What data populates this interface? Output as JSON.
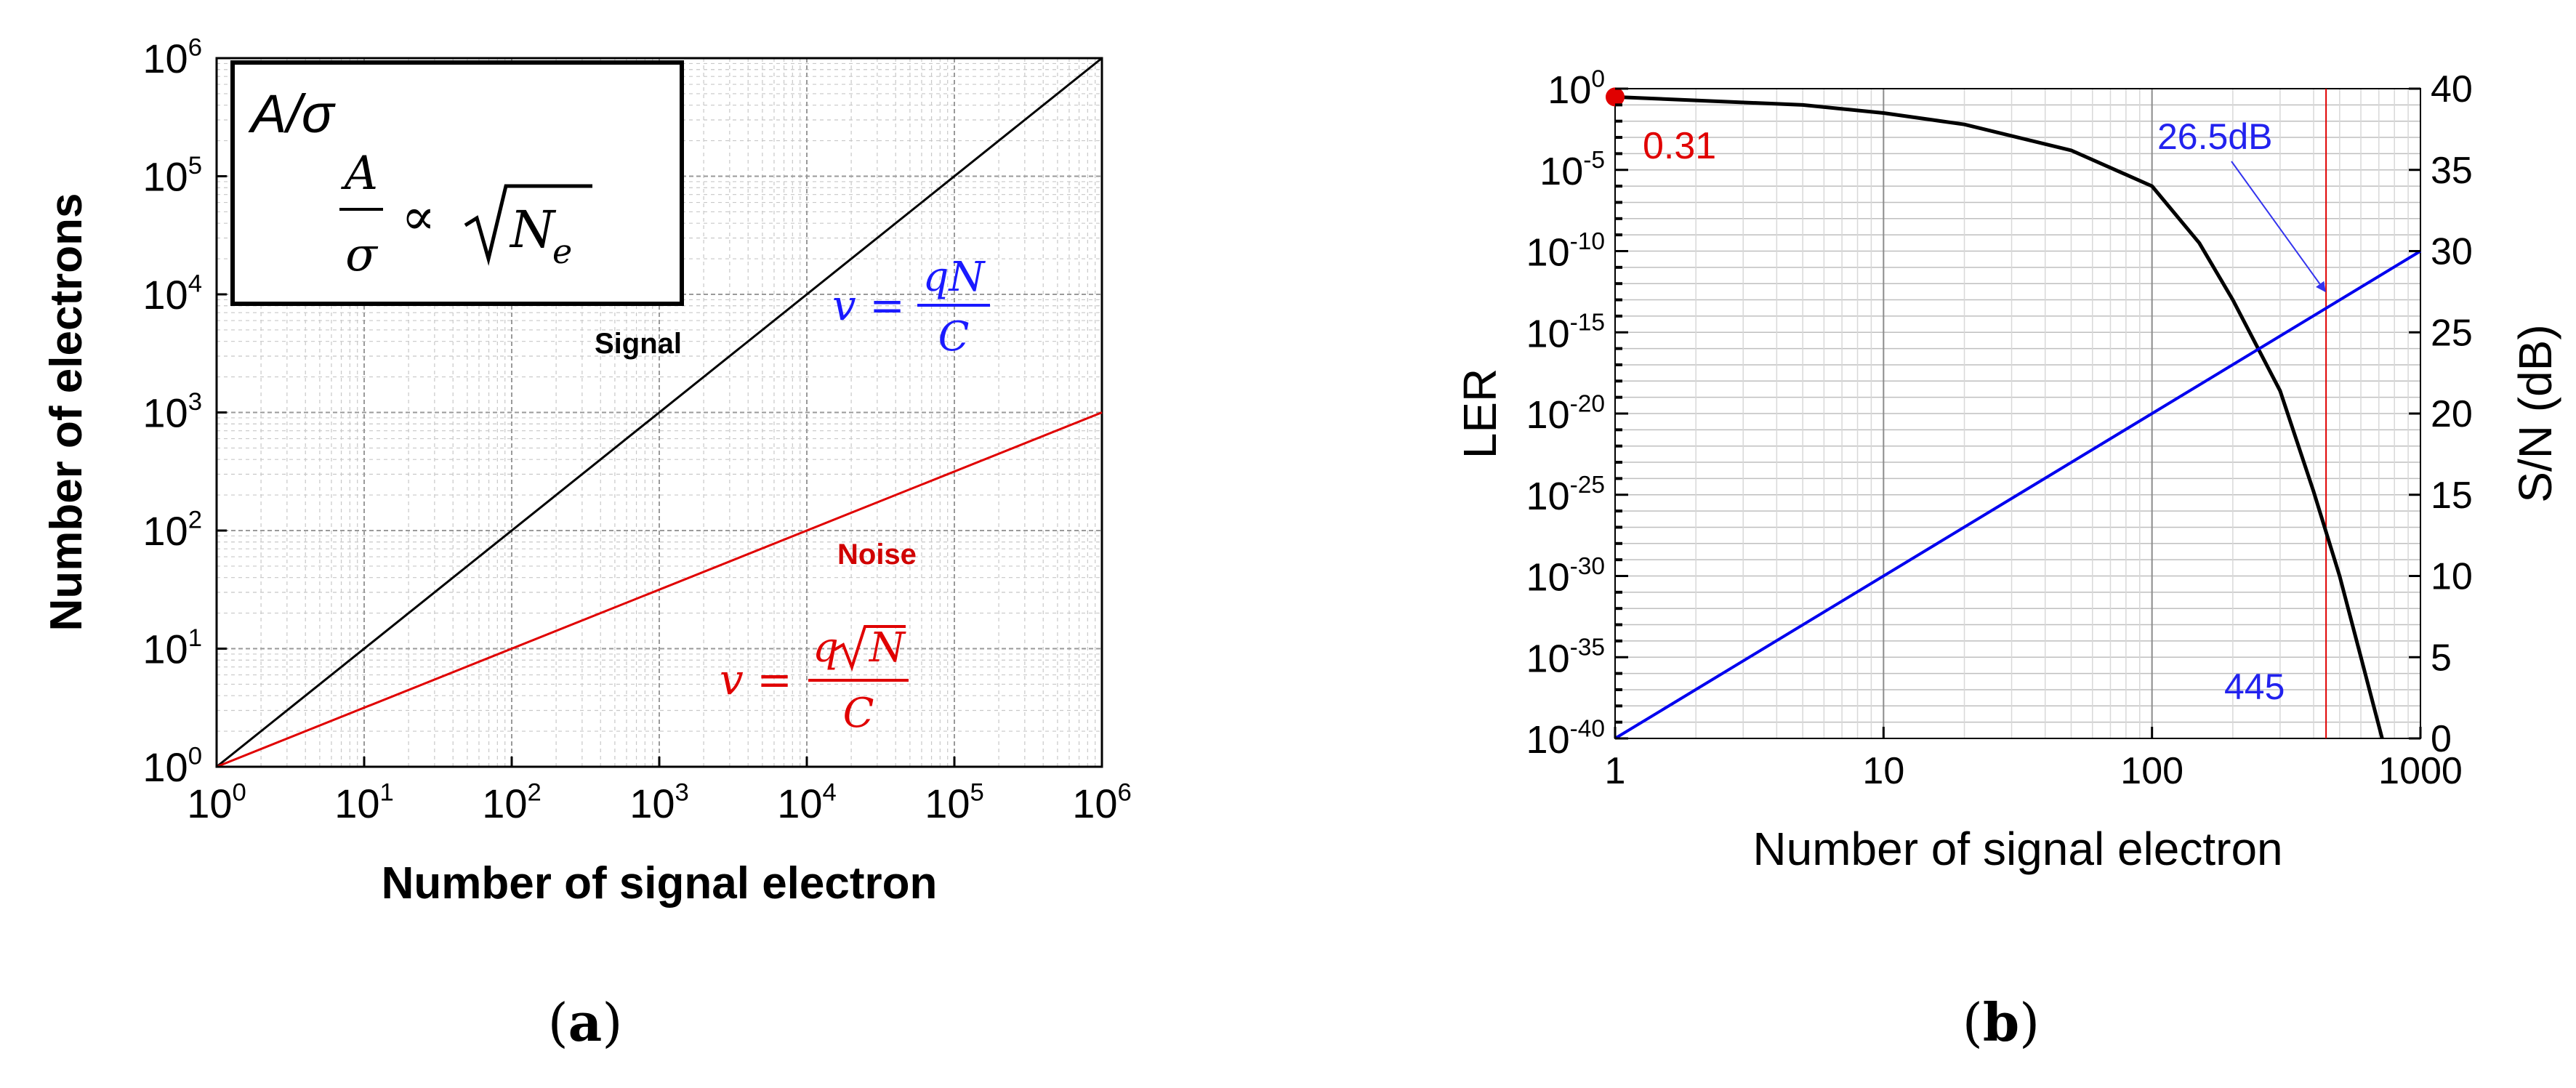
{
  "captions": {
    "a": {
      "open": "(",
      "letter": "a",
      "close": ")"
    },
    "b": {
      "open": "(",
      "letter": "b",
      "close": ")"
    }
  },
  "chart_data": [
    {
      "panel": "a",
      "type": "line",
      "title": "",
      "xlabel": "Number of signal electron",
      "ylabel": "Number of electrons",
      "xscale": "log",
      "yscale": "log",
      "xlim": [
        1,
        1000000
      ],
      "ylim": [
        1,
        1000000
      ],
      "grid": true,
      "x_ticks": [
        1,
        10,
        100,
        1000,
        10000,
        100000,
        1000000
      ],
      "y_ticks": [
        1,
        10,
        100,
        1000,
        10000,
        100000,
        1000000
      ],
      "tick_label_base": "10",
      "tick_label_exponents": [
        "0",
        "1",
        "2",
        "3",
        "4",
        "5",
        "6"
      ],
      "series": [
        {
          "name": "Signal",
          "color": "#000000",
          "x": [
            1,
            1000000
          ],
          "y": [
            1,
            1000000
          ],
          "formula": {
            "lhs": "v =",
            "num": "qN",
            "den": "C",
            "color": "#1a1aff"
          }
        },
        {
          "name": "Noise",
          "color": "#e00000",
          "x": [
            1,
            1000000
          ],
          "y": [
            1,
            1000
          ],
          "formula": {
            "lhs": "v =",
            "num_q": "q",
            "num_root": "N",
            "den": "C",
            "color": "#e00000"
          }
        }
      ],
      "legend_box": {
        "line1": "A/σ",
        "frac_num": "A",
        "frac_den": "σ",
        "prop": "∝",
        "root_var": "N",
        "root_sub": "e"
      }
    },
    {
      "panel": "b",
      "type": "line",
      "title": "",
      "xlabel": "Number of signal electron",
      "ylabel": "LER",
      "y2label": "S/N (dB)",
      "xscale": "log",
      "yscale": "log",
      "xlim": [
        1,
        1000
      ],
      "ylim": [
        1e-40,
        1
      ],
      "y2lim": [
        0,
        40
      ],
      "grid": true,
      "x_ticks": [
        1,
        10,
        100,
        1000
      ],
      "x_tick_labels": [
        "1",
        "10",
        "100",
        "1000"
      ],
      "y_ticks_exp": [
        0,
        -5,
        -10,
        -15,
        -20,
        -25,
        -30,
        -35,
        -40
      ],
      "y_tick_base": "10",
      "y_tick_exponents": [
        "0",
        "-5",
        "-10",
        "-15",
        "-20",
        "-25",
        "-30",
        "-35",
        "-40"
      ],
      "y2_ticks": [
        0,
        5,
        10,
        15,
        20,
        25,
        30,
        35,
        40
      ],
      "y2_tick_labels": [
        "0",
        "5",
        "10",
        "15",
        "20",
        "25",
        "30",
        "35",
        "40"
      ],
      "series": [
        {
          "name": "LER",
          "axis": "left",
          "color": "#000000",
          "x": [
            1,
            5,
            10,
            20,
            50,
            100,
            150,
            200,
            300,
            400,
            500,
            600,
            720
          ],
          "log10_y": [
            -0.51,
            -1.0,
            -1.5,
            -2.2,
            -3.8,
            -6.0,
            -9.5,
            -13.0,
            -18.6,
            -24.8,
            -30.0,
            -35.0,
            -40.0
          ]
        },
        {
          "name": "S/N",
          "axis": "right",
          "color": "#0000ee",
          "x": [
            1,
            1000
          ],
          "y": [
            0,
            30
          ]
        }
      ],
      "marker": {
        "x": 1,
        "log10_y": -0.51,
        "color": "#e00000"
      },
      "vline": {
        "x": 445,
        "color": "#e00000"
      },
      "annotations": {
        "ler_at_1": {
          "text": "0.31",
          "color": "#e00000"
        },
        "sn_at_445": {
          "text": "26.5dB",
          "color": "#2222ee",
          "x": 445,
          "y2": 26.5
        },
        "x_445": {
          "text": "445",
          "color": "#2222ee"
        }
      }
    }
  ]
}
